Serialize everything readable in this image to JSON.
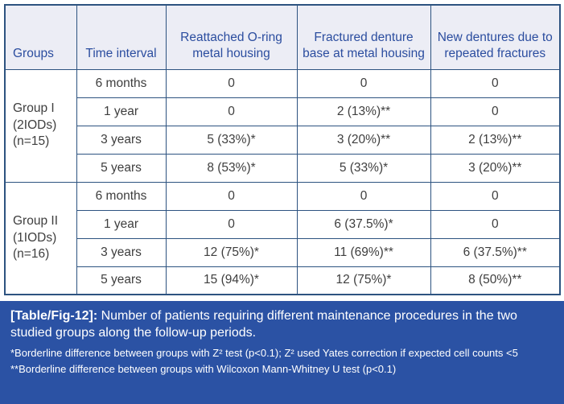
{
  "table": {
    "columns": [
      "Groups",
      "Time interval",
      "Reattached O-ring metal housing",
      "Fractured denture base at metal housing",
      "New dentures due to repeated fractures"
    ],
    "groups": [
      {
        "label_lines": {
          "0": "Group I",
          "1": "(2IODs)",
          "2": "(n=15)"
        },
        "rows": [
          {
            "interval": "6 months",
            "values": [
              "0",
              "0",
              "0"
            ]
          },
          {
            "interval": "1 year",
            "values": [
              "0",
              "2 (13%)**",
              "0"
            ]
          },
          {
            "interval": "3 years",
            "values": [
              "5 (33%)*",
              "3 (20%)**",
              "2 (13%)**"
            ]
          },
          {
            "interval": "5 years",
            "values": [
              "8 (53%)*",
              "5 (33%)*",
              "3 (20%)**"
            ]
          }
        ]
      },
      {
        "label_lines": {
          "0": "Group II",
          "1": "(1IODs)",
          "2": "(n=16)"
        },
        "rows": [
          {
            "interval": "6 months",
            "values": [
              "0",
              "0",
              "0"
            ]
          },
          {
            "interval": "1 year",
            "values": [
              "0",
              "6 (37.5%)*",
              "0"
            ]
          },
          {
            "interval": "3 years",
            "values": [
              "12 (75%)*",
              "11 (69%)**",
              "6 (37.5%)**"
            ]
          },
          {
            "interval": "5 years",
            "values": [
              "15 (94%)*",
              "12 (75%)*",
              "8 (50%)**"
            ]
          }
        ]
      }
    ]
  },
  "caption": {
    "tag": "[Table/Fig-12]:",
    "text": " Number of patients requiring different maintenance procedures in the two studied groups along the follow-up periods.",
    "footnotes": [
      "*Borderline difference between groups with Z² test (p<0.1); Z² used Yates correction if expected cell counts <5",
      "**Borderline difference between groups with Wilcoxon Mann-Whitney U test (p<0.1)"
    ]
  },
  "colors": {
    "border": "#2d5380",
    "header_bg": "#ecedf5",
    "header_text": "#2b4d9f",
    "body_text": "#3e3e3e",
    "caption_bg": "#2b52a4",
    "caption_text": "#ffffff"
  }
}
